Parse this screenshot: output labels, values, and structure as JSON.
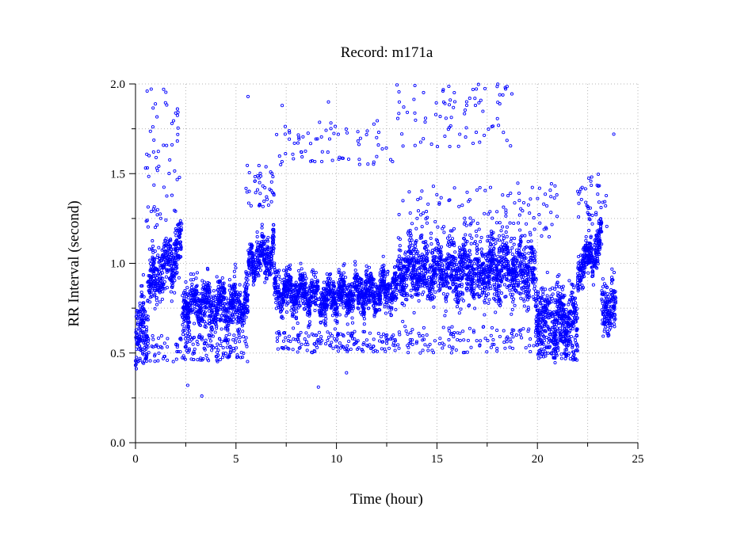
{
  "chart_data": {
    "type": "scatter",
    "title": "Record:  m171a",
    "xlabel": "Time (hour)",
    "ylabel": "RR Interval (second)",
    "xlim": [
      0,
      25
    ],
    "ylim": [
      0,
      2
    ],
    "xticks": [
      "0",
      "5",
      "10",
      "15",
      "20",
      "25"
    ],
    "yticks": [
      "0.0",
      "0.5",
      "1.0",
      "1.5",
      "2.0"
    ],
    "grid": true,
    "marker": "open-circle",
    "marker_color": "#0000ff",
    "series": [
      {
        "x_start": 0,
        "x_end": 23.9,
        "band_segments": [
          {
            "x0": 0.0,
            "x1": 0.6,
            "y0": 0.55,
            "y1": 0.72,
            "spread": 0.09
          },
          {
            "x0": 0.6,
            "x1": 2.3,
            "y0": 0.85,
            "y1": 1.1,
            "spread": 0.07
          },
          {
            "x0": 2.3,
            "x1": 5.6,
            "y0": 0.78,
            "y1": 0.76,
            "spread": 0.06
          },
          {
            "x0": 5.6,
            "x1": 6.9,
            "y0": 1.0,
            "y1": 1.06,
            "spread": 0.05
          },
          {
            "x0": 6.9,
            "x1": 8.9,
            "y0": 0.86,
            "y1": 0.82,
            "spread": 0.05
          },
          {
            "x0": 8.9,
            "x1": 13.0,
            "y0": 0.8,
            "y1": 0.86,
            "spread": 0.05
          },
          {
            "x0": 13.0,
            "x1": 19.9,
            "y0": 0.96,
            "y1": 0.97,
            "spread": 0.08
          },
          {
            "x0": 19.9,
            "x1": 22.0,
            "y0": 0.72,
            "y1": 0.68,
            "spread": 0.08
          },
          {
            "x0": 22.0,
            "x1": 23.2,
            "y0": 0.96,
            "y1": 1.12,
            "spread": 0.05
          },
          {
            "x0": 23.2,
            "x1": 23.9,
            "y0": 0.76,
            "y1": 0.74,
            "spread": 0.07
          }
        ],
        "upper_clusters": [
          {
            "x0": 0.5,
            "x1": 2.2,
            "y0": 1.2,
            "y1": 1.98,
            "n": 60
          },
          {
            "x0": 5.5,
            "x1": 6.9,
            "y0": 1.3,
            "y1": 1.55,
            "n": 40
          },
          {
            "x0": 7.0,
            "x1": 12.8,
            "y0": 1.55,
            "y1": 1.8,
            "n": 70
          },
          {
            "x0": 13.0,
            "x1": 18.8,
            "y0": 1.65,
            "y1": 2.0,
            "n": 80
          },
          {
            "x0": 13.0,
            "x1": 21.0,
            "y0": 1.1,
            "y1": 1.45,
            "n": 120
          },
          {
            "x0": 22.0,
            "x1": 23.5,
            "y0": 1.2,
            "y1": 1.5,
            "n": 40
          }
        ],
        "lower_clusters": [
          {
            "x0": 0.0,
            "x1": 2.3,
            "y0": 0.45,
            "y1": 0.6,
            "n": 60
          },
          {
            "x0": 2.3,
            "x1": 5.6,
            "y0": 0.45,
            "y1": 0.6,
            "n": 120
          },
          {
            "x0": 7.0,
            "x1": 13.0,
            "y0": 0.5,
            "y1": 0.62,
            "n": 160
          },
          {
            "x0": 13.0,
            "x1": 20.0,
            "y0": 0.5,
            "y1": 0.65,
            "n": 120
          },
          {
            "x0": 20.0,
            "x1": 22.0,
            "y0": 0.46,
            "y1": 0.58,
            "n": 100
          }
        ],
        "outliers": [
          {
            "x": 9.1,
            "y": 0.31
          },
          {
            "x": 3.3,
            "y": 0.26
          },
          {
            "x": 2.6,
            "y": 0.32
          },
          {
            "x": 10.5,
            "y": 0.39
          },
          {
            "x": 9.6,
            "y": 1.9
          },
          {
            "x": 1.4,
            "y": 1.97
          },
          {
            "x": 5.6,
            "y": 1.93
          },
          {
            "x": 7.3,
            "y": 1.88
          },
          {
            "x": 18.4,
            "y": 1.98
          },
          {
            "x": 23.8,
            "y": 1.72
          }
        ]
      }
    ]
  }
}
